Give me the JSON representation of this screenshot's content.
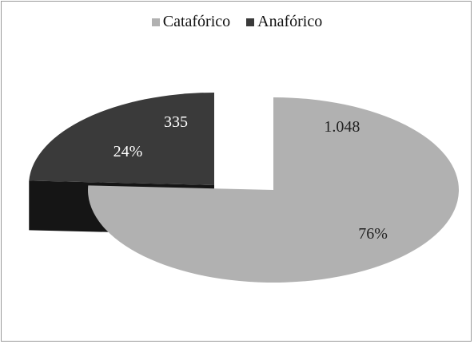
{
  "chart_data": {
    "type": "pie",
    "style": "3d-exploded",
    "title": "",
    "legend": {
      "placement": "top"
    },
    "slices": [
      {
        "name": "Catafórico",
        "value": 1048,
        "value_label": "1.048",
        "percent_label": "76%",
        "color": "#b1b1b1",
        "side_color": "#8c8c8c",
        "label_color": "#222222"
      },
      {
        "name": "Anafórico",
        "value": 335,
        "value_label": "335",
        "percent_label": "24%",
        "color": "#3a3a3a",
        "side_color": "#0a0a0a",
        "label_color": "#ffffff"
      }
    ]
  }
}
